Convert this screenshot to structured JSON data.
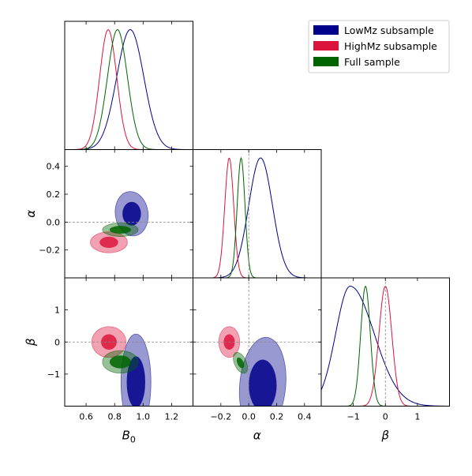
{
  "chart_data": {
    "type": "corner",
    "parameters": [
      {
        "key": "B0",
        "label": "B",
        "label_sub": "0",
        "range": [
          0.45,
          1.35
        ],
        "ticks": [
          0.6,
          0.8,
          1.0,
          1.2
        ],
        "tick_labels": [
          "0.6",
          "0.8",
          "1.0",
          "1.2"
        ]
      },
      {
        "key": "alpha",
        "label": "α",
        "range": [
          -0.4,
          0.52
        ],
        "ticks": [
          -0.2,
          0.0,
          0.2,
          0.4
        ],
        "tick_labels": [
          "−0.2",
          "0.0",
          "0.2",
          "0.4"
        ]
      },
      {
        "key": "beta",
        "label": "β",
        "range": [
          -2.0,
          2.0
        ],
        "ticks": [
          -1,
          0,
          1
        ],
        "tick_labels": [
          "−1",
          "0",
          "1"
        ]
      }
    ],
    "reference_lines": {
      "alpha": 0.0,
      "beta": 0.0
    },
    "legend": {
      "position": "top-right"
    },
    "series": [
      {
        "name": "LowMz subsample",
        "color": "#00008b",
        "fill_color": "#00008b",
        "marginals": {
          "B0": {
            "mean": 0.91,
            "sd": 0.095
          },
          "alpha": {
            "mean": 0.085,
            "sd": 0.085
          },
          "beta": {
            "mean": -1.1,
            "sd": 0.6,
            "skew_right_sd": 0.75,
            "skew_left_sd": 0.45
          }
        },
        "ellipses": {
          "B0_alpha": {
            "center": [
              0.92,
              0.06
            ],
            "inner": [
              0.065,
              0.085,
              0
            ],
            "outer": [
              0.115,
              0.16,
              -8
            ]
          },
          "B0_beta": {
            "center": [
              0.95,
              -1.25
            ],
            "inner": [
              0.065,
              0.8,
              0
            ],
            "outer": [
              0.105,
              1.5,
              0
            ]
          },
          "alpha_beta": {
            "center": [
              0.1,
              -1.35
            ],
            "inner": [
              0.1,
              0.8,
              0
            ],
            "outer": [
              0.165,
              1.5,
              5
            ]
          }
        }
      },
      {
        "name": "HighMz subsample",
        "color": "#dc143c",
        "fill_color": "#dc143c",
        "marginals": {
          "B0": {
            "mean": 0.755,
            "sd": 0.06
          },
          "alpha": {
            "mean": -0.14,
            "sd": 0.032
          },
          "beta": {
            "mean": 0.0,
            "sd": 0.2
          }
        },
        "ellipses": {
          "B0_alpha": {
            "center": [
              0.76,
              -0.145
            ],
            "inner": [
              0.065,
              0.04,
              0
            ],
            "outer": [
              0.13,
              0.075,
              0
            ]
          },
          "B0_beta": {
            "center": [
              0.76,
              0.0
            ],
            "inner": [
              0.055,
              0.24,
              0
            ],
            "outer": [
              0.12,
              0.48,
              0
            ]
          },
          "alpha_beta": {
            "center": [
              -0.14,
              0.0
            ],
            "inner": [
              0.04,
              0.24,
              0
            ],
            "outer": [
              0.075,
              0.48,
              0
            ]
          }
        }
      },
      {
        "name": "Full sample",
        "color": "#006400",
        "fill_color": "#006400",
        "marginals": {
          "B0": {
            "mean": 0.82,
            "sd": 0.07
          },
          "alpha": {
            "mean": -0.055,
            "sd": 0.028
          },
          "beta": {
            "mean": -0.62,
            "sd": 0.15
          }
        },
        "ellipses": {
          "B0_alpha": {
            "center": [
              0.84,
              -0.055
            ],
            "inner": [
              0.075,
              0.028,
              0
            ],
            "outer": [
              0.125,
              0.048,
              0
            ]
          },
          "B0_beta": {
            "center": [
              0.84,
              -0.62
            ],
            "inner": [
              0.075,
              0.2,
              0
            ],
            "outer": [
              0.125,
              0.35,
              0
            ]
          },
          "alpha_beta": {
            "center": [
              -0.06,
              -0.65
            ],
            "inner": [
              0.022,
              0.18,
              -25
            ],
            "outer": [
              0.042,
              0.35,
              -25
            ]
          }
        }
      }
    ]
  }
}
